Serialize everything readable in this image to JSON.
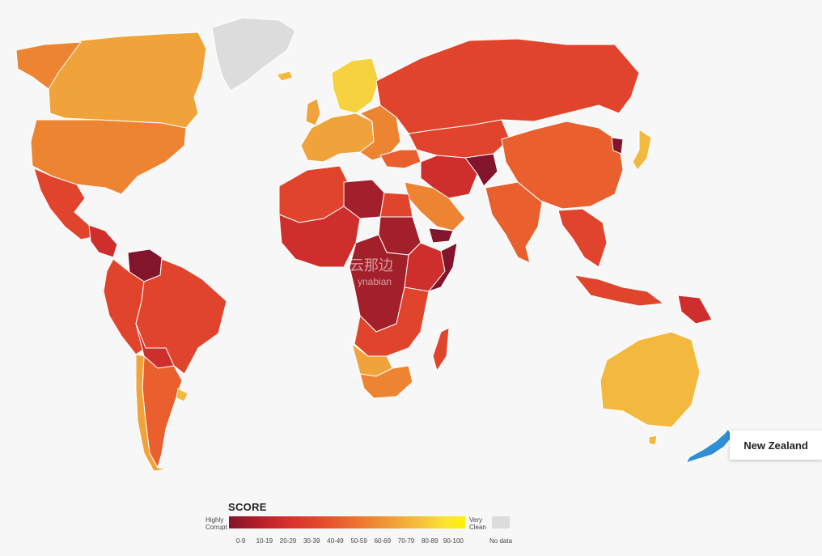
{
  "tooltip": {
    "country": "New Zealand"
  },
  "watermark": {
    "line1": "云那边",
    "line2": "ynabian"
  },
  "legend": {
    "title": "SCORE",
    "low_label_1": "Highly",
    "low_label_2": "Corrupt",
    "high_label_1": "Very",
    "high_label_2": "Clean",
    "ranges": [
      "0-9",
      "10-19",
      "20-29",
      "30-39",
      "40-49",
      "50-59",
      "60-69",
      "70-79",
      "80-89",
      "90-100"
    ],
    "no_data_label": "No data"
  },
  "colors": {
    "0-9": "#82152b",
    "10-19": "#a3202b",
    "20-29": "#cf2f2c",
    "30-39": "#e1442c",
    "40-49": "#e9602e",
    "50-59": "#ec8432",
    "60-69": "#f0a33a",
    "70-79": "#f3b83e",
    "80-89": "#f6d23e",
    "90-100": "#fff200",
    "no-data": "#dcdcdc",
    "selected": "#2f8fd6"
  },
  "map_icons": [
    "world-map",
    "selected-country-highlight"
  ]
}
